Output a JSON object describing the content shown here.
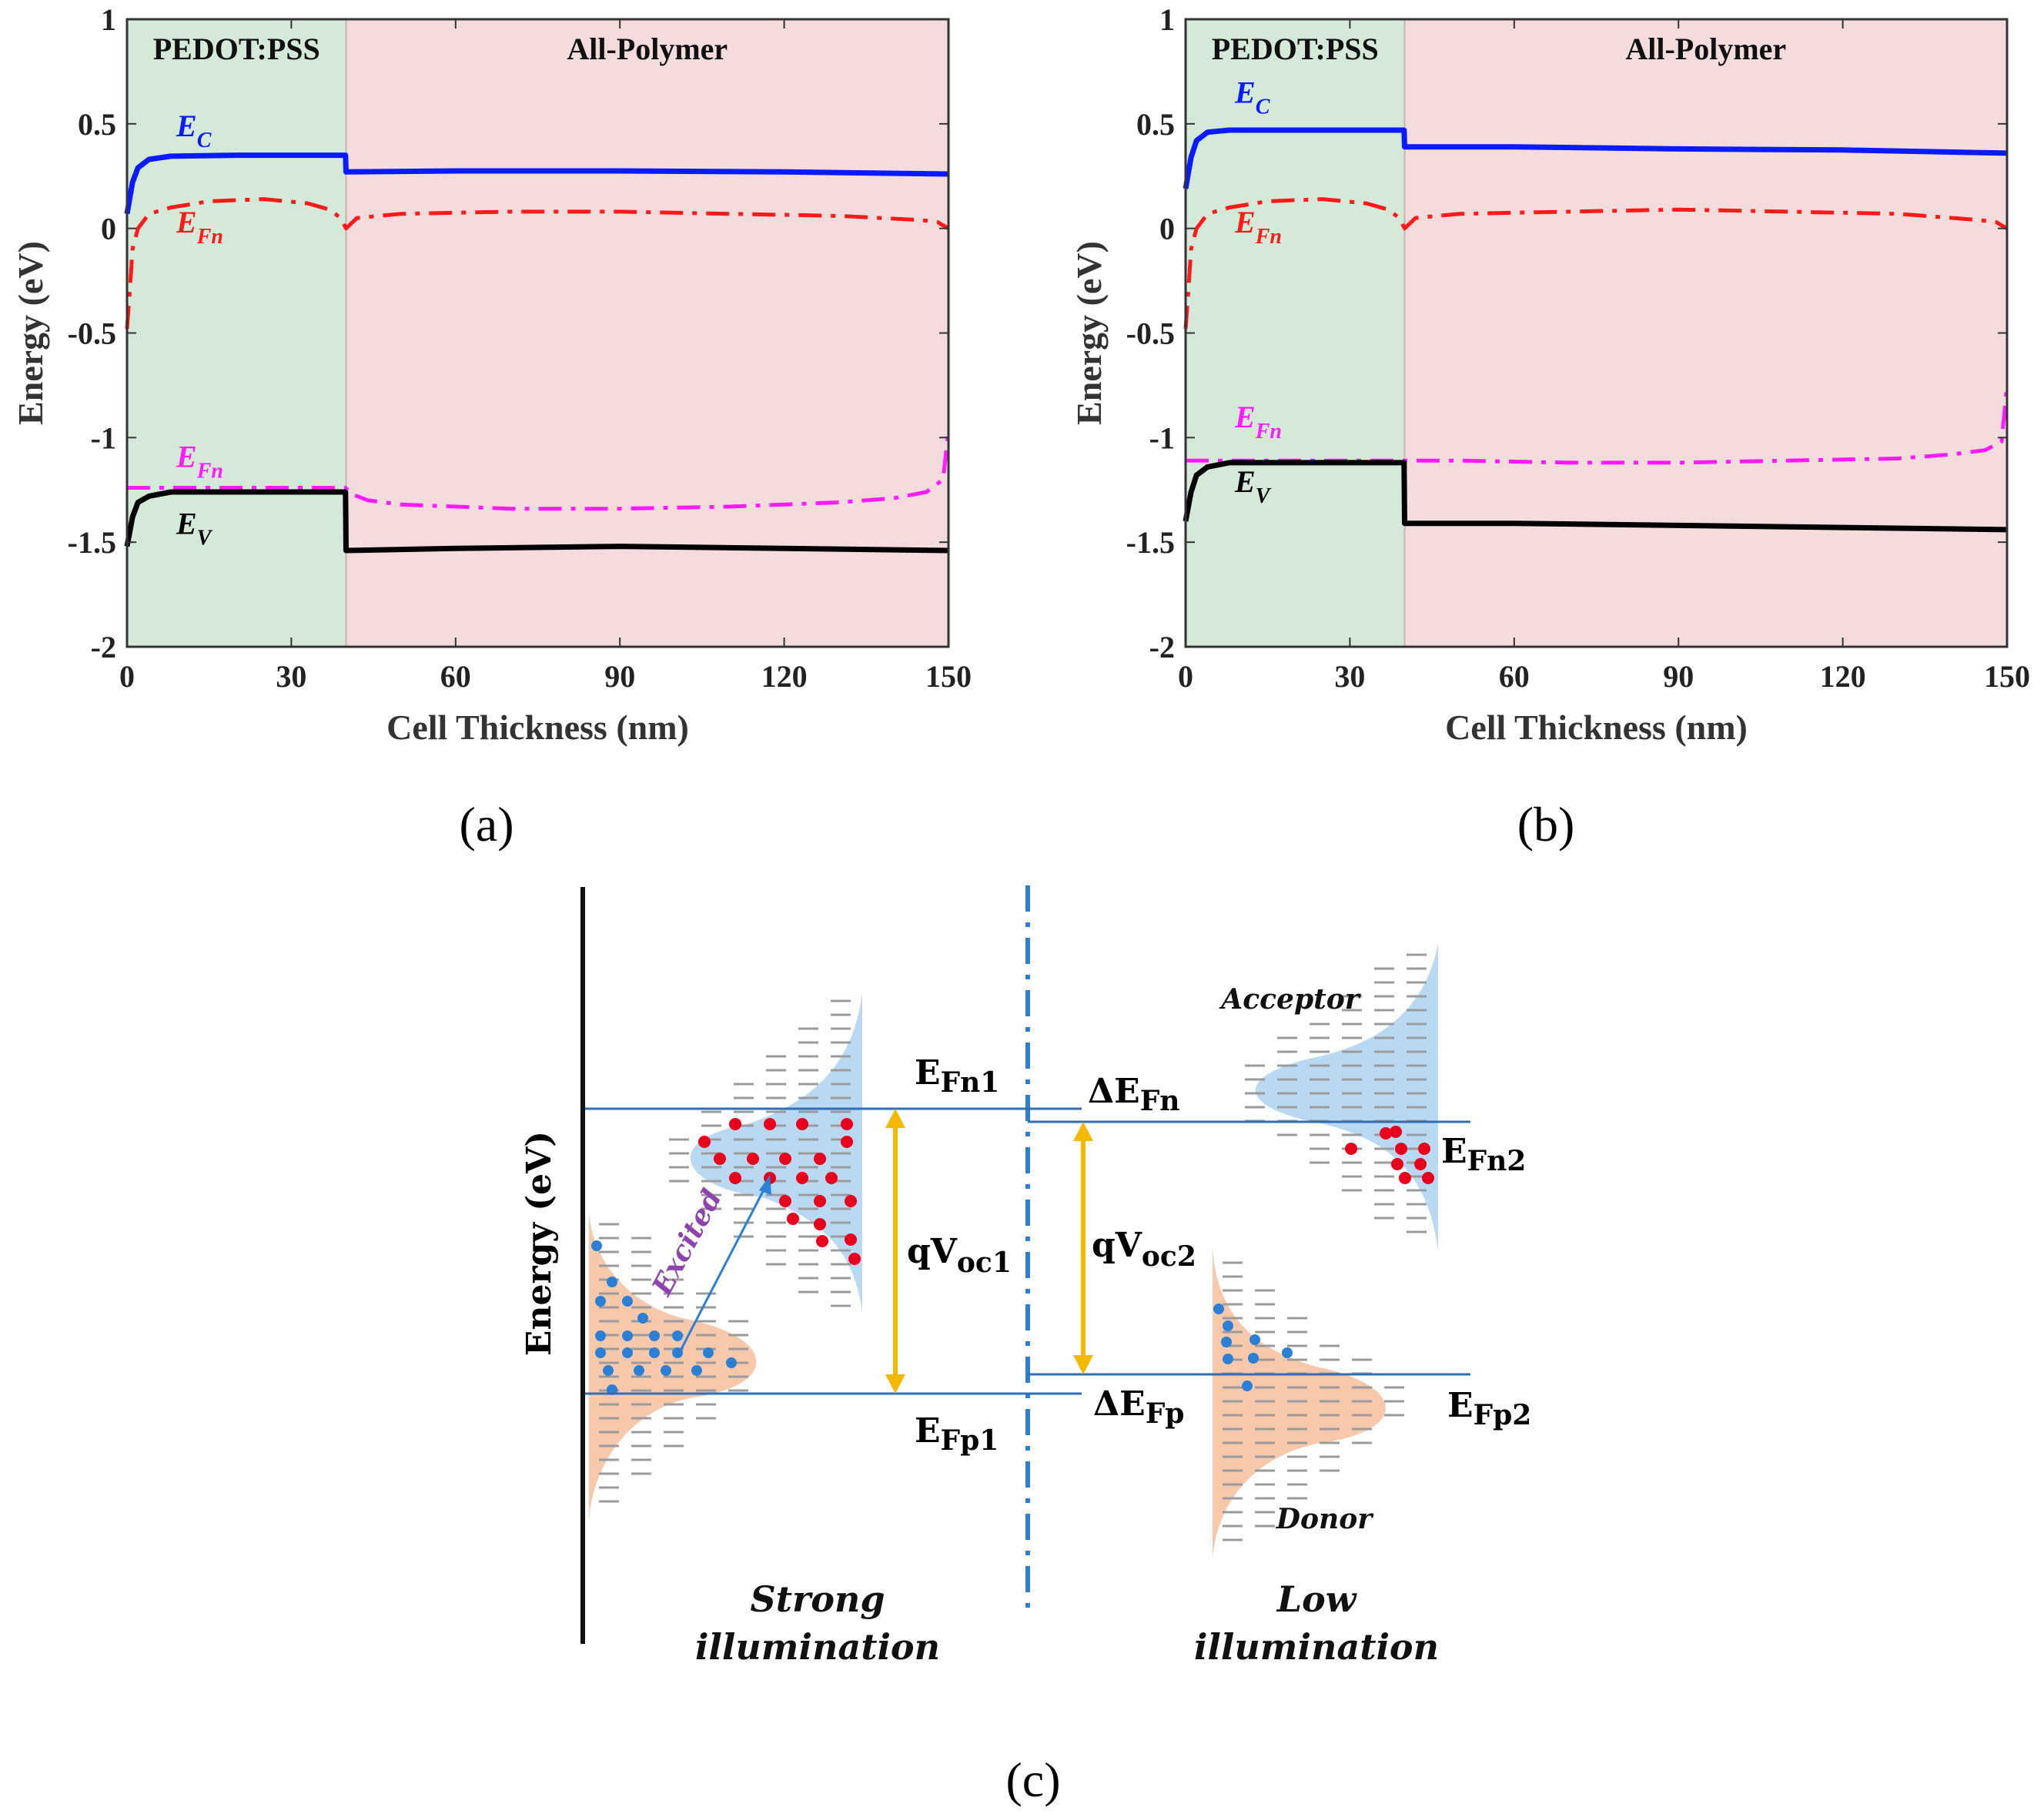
{
  "chart_data": [
    {
      "type": "line",
      "panel_label": "(a)",
      "xlabel": "Cell Thickness (nm)",
      "ylabel": "Energy (eV)",
      "xlim": [
        0,
        150
      ],
      "ylim": [
        -2,
        1
      ],
      "xticks": [
        "0",
        "30",
        "60",
        "90",
        "120",
        "150"
      ],
      "yticks": [
        "1",
        "0.5",
        "0",
        "-0.5",
        "-1",
        "-1.5",
        "-2"
      ],
      "regions": [
        {
          "label": "PEDOT:PSS",
          "x": [
            0,
            40
          ],
          "color": "#d4e9d8"
        },
        {
          "label": "All-Polymer",
          "x": [
            40,
            150
          ],
          "color": "#f4dcdd"
        }
      ],
      "series": [
        {
          "name": "E",
          "sub": "C",
          "color": "#0a1bff",
          "style": "solid",
          "x": [
            0,
            1,
            2,
            4,
            8,
            20,
            39.9,
            40,
            60,
            90,
            120,
            150
          ],
          "y": [
            0.07,
            0.22,
            0.29,
            0.33,
            0.345,
            0.35,
            0.35,
            0.27,
            0.275,
            0.275,
            0.27,
            0.26
          ]
        },
        {
          "name": "E",
          "sub": "Fn",
          "color": "#ff1a1a",
          "style": "dashdot",
          "x": [
            0,
            0.5,
            1,
            2,
            4,
            8,
            15,
            25,
            33,
            37,
            39,
            40,
            42,
            50,
            70,
            90,
            110,
            130,
            145,
            148,
            150
          ],
          "y": [
            -0.48,
            -0.3,
            -0.1,
            0.0,
            0.07,
            0.1,
            0.13,
            0.14,
            0.12,
            0.09,
            0.05,
            0.0,
            0.05,
            0.07,
            0.08,
            0.08,
            0.07,
            0.06,
            0.04,
            0.03,
            0.0
          ]
        },
        {
          "name": "E",
          "sub": "Fn",
          "color": "#ff1aff",
          "style": "dashdot",
          "x": [
            0,
            20,
            39.9,
            41,
            44,
            50,
            70,
            90,
            110,
            130,
            140,
            146,
            149,
            150
          ],
          "y": [
            -1.24,
            -1.24,
            -1.24,
            -1.27,
            -1.3,
            -1.32,
            -1.34,
            -1.34,
            -1.33,
            -1.31,
            -1.29,
            -1.26,
            -1.2,
            -0.97
          ]
        },
        {
          "name": "E",
          "sub": "V",
          "color": "#000000",
          "style": "solid",
          "x": [
            0,
            1,
            2,
            4,
            8,
            20,
            39.9,
            40,
            60,
            90,
            120,
            150
          ],
          "y": [
            -1.52,
            -1.38,
            -1.31,
            -1.28,
            -1.26,
            -1.26,
            -1.26,
            -1.54,
            -1.53,
            -1.52,
            -1.53,
            -1.54
          ]
        }
      ],
      "labels": [
        {
          "series": 0,
          "x": 9,
          "y": 0.44
        },
        {
          "series": 1,
          "x": 9,
          "y": -0.02
        },
        {
          "series": 2,
          "x": 9,
          "y": -1.14
        },
        {
          "series": 3,
          "x": 9,
          "y": -1.46
        }
      ]
    },
    {
      "type": "line",
      "panel_label": "(b)",
      "xlabel": "Cell Thickness (nm)",
      "ylabel": "Energy (eV)",
      "xlim": [
        0,
        150
      ],
      "ylim": [
        -2,
        1
      ],
      "xticks": [
        "0",
        "30",
        "60",
        "90",
        "120",
        "150"
      ],
      "yticks": [
        "1",
        "0.5",
        "0",
        "-0.5",
        "-1",
        "-1.5",
        "-2"
      ],
      "regions": [
        {
          "label": "PEDOT:PSS",
          "x": [
            0,
            40
          ],
          "color": "#d4e9d8"
        },
        {
          "label": "All-Polymer",
          "x": [
            40,
            150
          ],
          "color": "#f4dcdd"
        }
      ],
      "series": [
        {
          "name": "E",
          "sub": "C",
          "color": "#0a1bff",
          "style": "solid",
          "x": [
            0,
            1,
            2,
            4,
            8,
            20,
            39.9,
            40,
            60,
            90,
            120,
            150
          ],
          "y": [
            0.19,
            0.34,
            0.42,
            0.46,
            0.47,
            0.47,
            0.47,
            0.39,
            0.39,
            0.38,
            0.375,
            0.36
          ]
        },
        {
          "name": "E",
          "sub": "Fn",
          "color": "#ff1a1a",
          "style": "dashdot",
          "x": [
            0,
            0.5,
            1,
            2,
            4,
            8,
            15,
            25,
            33,
            37,
            39,
            40,
            42,
            50,
            70,
            90,
            110,
            130,
            145,
            148,
            150
          ],
          "y": [
            -0.48,
            -0.3,
            -0.1,
            0.0,
            0.07,
            0.1,
            0.13,
            0.14,
            0.12,
            0.09,
            0.05,
            0.0,
            0.05,
            0.07,
            0.08,
            0.09,
            0.08,
            0.07,
            0.04,
            0.03,
            0.0
          ]
        },
        {
          "name": "E",
          "sub": "Fn",
          "color": "#ff1aff",
          "style": "dashdot",
          "x": [
            0,
            20,
            39.9,
            41,
            50,
            70,
            90,
            110,
            130,
            140,
            146,
            149,
            150
          ],
          "y": [
            -1.11,
            -1.11,
            -1.11,
            -1.11,
            -1.11,
            -1.12,
            -1.12,
            -1.11,
            -1.1,
            -1.08,
            -1.06,
            -1.02,
            -0.75
          ]
        },
        {
          "name": "E",
          "sub": "V",
          "color": "#000000",
          "style": "solid",
          "x": [
            0,
            1,
            2,
            4,
            8,
            20,
            39.9,
            40,
            60,
            90,
            120,
            150
          ],
          "y": [
            -1.4,
            -1.26,
            -1.18,
            -1.14,
            -1.12,
            -1.12,
            -1.12,
            -1.41,
            -1.41,
            -1.42,
            -1.43,
            -1.44
          ]
        }
      ],
      "labels": [
        {
          "series": 0,
          "x": 9,
          "y": 0.6
        },
        {
          "series": 1,
          "x": 9,
          "y": -0.02
        },
        {
          "series": 2,
          "x": 9,
          "y": -0.95
        },
        {
          "series": 3,
          "x": 9,
          "y": -1.26
        }
      ]
    }
  ],
  "diagram": {
    "panel_label": "(c)",
    "ylabel": "Energy (eV)",
    "efn1": "E",
    "efn1_sub": "Fn1",
    "efp1": "E",
    "efp1_sub": "Fp1",
    "qvoc1": "qV",
    "qvoc1_sub": "oc1",
    "qvoc2": "qV",
    "qvoc2_sub": "oc2",
    "defn": "ΔE",
    "defn_sub": "Fn",
    "defp": "ΔE",
    "defp_sub": "Fp",
    "efn2": "E",
    "efn2_sub": "Fn2",
    "efp2": "E",
    "efp2_sub": "Fp2",
    "excited": "Excited",
    "acceptor": "Acceptor",
    "donor": "Donor",
    "strong_1": "Strong",
    "strong_2": "illumination",
    "low_1": "Low",
    "low_2": "illumination",
    "colors": {
      "acceptor": "#b9d9f2",
      "donor": "#f7c9aa",
      "level_line": "#2f6db5",
      "arrow": "#f5b800",
      "electron": "#e8001c",
      "hole": "#2b7fd4"
    }
  }
}
